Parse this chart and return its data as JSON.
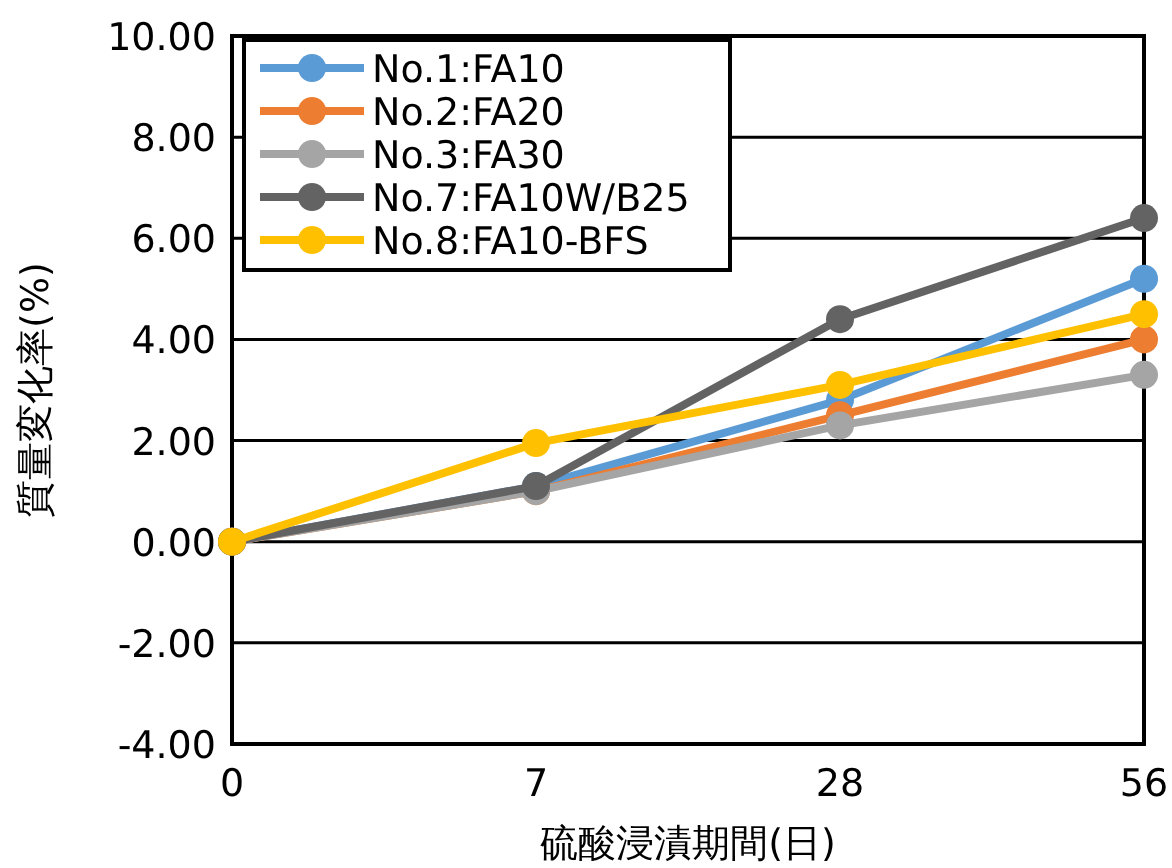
{
  "chart_data": {
    "type": "line",
    "xlabel": "硫酸浸漬期間(日)",
    "ylabel": "質量変化率(%)",
    "categories": [
      "0",
      "7",
      "28",
      "56"
    ],
    "series": [
      {
        "name": "No.1:FA10",
        "color": "#5b9bd5",
        "values": [
          0,
          1.1,
          2.8,
          5.2
        ]
      },
      {
        "name": "No.2:FA20",
        "color": "#ed7d31",
        "values": [
          0,
          1.0,
          2.5,
          4.0
        ]
      },
      {
        "name": "No.3:FA30",
        "color": "#a5a5a5",
        "values": [
          0,
          1.0,
          2.3,
          3.3
        ]
      },
      {
        "name": "No.7:FA10W/B25",
        "color": "#636363",
        "values": [
          0,
          1.1,
          4.4,
          6.4
        ]
      },
      {
        "name": "No.8:FA10-BFS",
        "color": "#ffc000",
        "values": [
          0,
          1.95,
          3.1,
          4.5
        ]
      }
    ],
    "ylim": [
      -4,
      10
    ],
    "yticks": [
      {
        "value": -4,
        "label": "-4.00"
      },
      {
        "value": -2,
        "label": "-2.00"
      },
      {
        "value": 0,
        "label": "0.00"
      },
      {
        "value": 2,
        "label": "2.00"
      },
      {
        "value": 4,
        "label": "4.00"
      },
      {
        "value": 6,
        "label": "6.00"
      },
      {
        "value": 8,
        "label": "8.00"
      },
      {
        "value": 10,
        "label": "10.00"
      }
    ],
    "grid": "y",
    "legend": "top left",
    "marker": "circle",
    "line_style": "solid"
  }
}
